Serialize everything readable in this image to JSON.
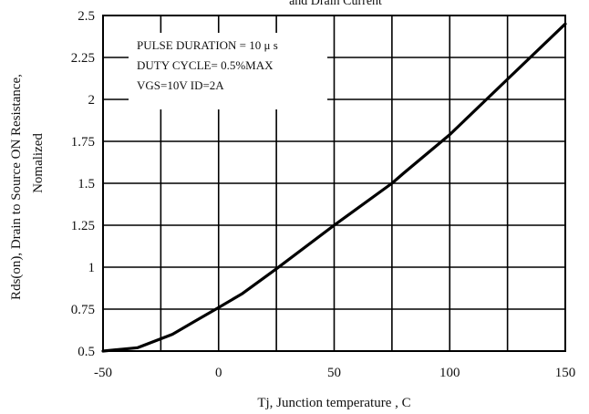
{
  "chart_data": {
    "type": "line",
    "title": "and Drain Current",
    "xlabel": "Tj, Junction temperature , C",
    "ylabel": "Rds(on), Drain to Source ON Resistance,",
    "ylabel_line2": "Nomalized",
    "xlim": [
      -50,
      150
    ],
    "ylim": [
      0.5,
      2.5
    ],
    "x_ticks": [
      -50,
      0,
      50,
      100,
      150
    ],
    "x_tick_labels": [
      "-50",
      "0",
      "50",
      "100",
      "150"
    ],
    "y_ticks": [
      0.5,
      0.75,
      1,
      1.25,
      1.5,
      1.75,
      2,
      2.25,
      2.5
    ],
    "y_tick_labels": [
      "0.5",
      "0.75",
      "1",
      "1.25",
      "1.5",
      "1.75",
      "2",
      "2.25",
      "2.5"
    ],
    "grid": true,
    "annotations": [
      "PULSE   DURATION = 10 μ s",
      "DUTY   CYCLE= 0.5%MAX",
      "VGS=10V   ID=2A"
    ],
    "series": [
      {
        "x": [
          -50,
          -35,
          -20,
          -10,
          0,
          10,
          25,
          50,
          75,
          80,
          100,
          125,
          150
        ],
        "y": [
          0.5,
          0.52,
          0.6,
          0.68,
          0.76,
          0.84,
          0.99,
          1.25,
          1.5,
          1.56,
          1.79,
          2.12,
          2.45
        ]
      }
    ],
    "colors": {
      "line": "#000000",
      "grid": "#000000"
    }
  }
}
